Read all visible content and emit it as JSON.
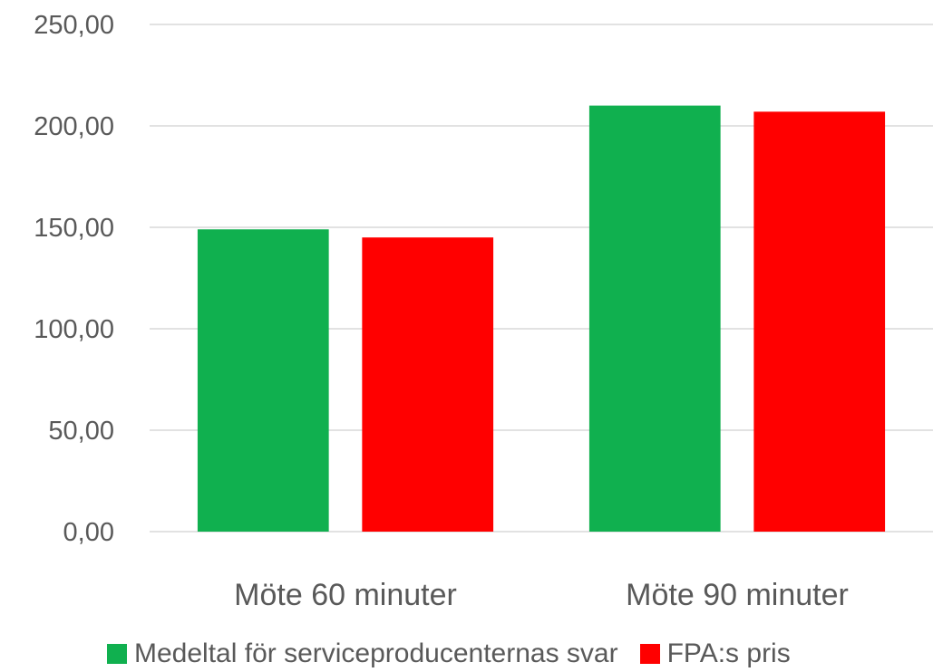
{
  "chart_data": {
    "type": "bar",
    "categories": [
      "Möte 60 minuter",
      "Möte 90 minuter"
    ],
    "series": [
      {
        "name": "Medeltal för serviceproducenternas svar",
        "values": [
          149.0,
          210.0
        ],
        "color": "#10b04f"
      },
      {
        "name": "FPA:s pris",
        "values": [
          145.0,
          207.0
        ],
        "color": "#ff0000"
      }
    ],
    "yticks": [
      "0,00",
      "50,00",
      "100,00",
      "150,00",
      "200,00",
      "250,00"
    ],
    "ylim": [
      0,
      250
    ],
    "grid": true,
    "legend_position": "bottom"
  }
}
